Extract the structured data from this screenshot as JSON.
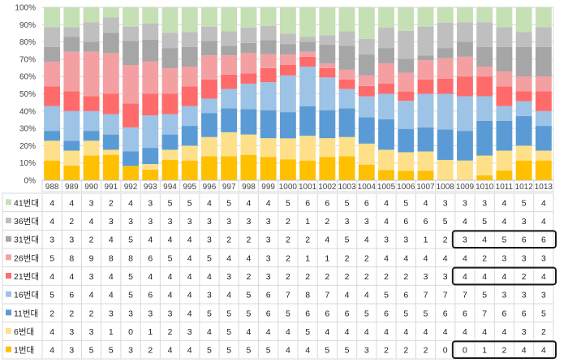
{
  "chart_data": {
    "type": "bar",
    "stacked": "percent",
    "grid": true,
    "ylim": [
      0,
      100
    ],
    "y_ticks": [
      "0%",
      "10%",
      "20%",
      "30%",
      "40%",
      "50%",
      "60%",
      "70%",
      "80%",
      "90%",
      "100%"
    ],
    "categories": [
      "988",
      "989",
      "990",
      "991",
      "992",
      "993",
      "994",
      "995",
      "996",
      "997",
      "998",
      "999",
      "1000",
      "1001",
      "1002",
      "1003",
      "1004",
      "1005",
      "1006",
      "1007",
      "1008",
      "1009",
      "1010",
      "1011",
      "1012",
      "1013"
    ],
    "series": [
      {
        "name": "1번대",
        "color": "#FFC000",
        "values": [
          4,
          3,
          5,
          5,
          3,
          2,
          4,
          4,
          5,
          5,
          5,
          5,
          4,
          4,
          5,
          5,
          3,
          2,
          2,
          2,
          0,
          0,
          1,
          2,
          4,
          4
        ]
      },
      {
        "name": "6번대",
        "color": "#FFE08A",
        "values": [
          4,
          3,
          3,
          1,
          0,
          1,
          2,
          3,
          4,
          5,
          4,
          4,
          4,
          5,
          4,
          4,
          4,
          4,
          4,
          4,
          4,
          4,
          4,
          4,
          3,
          2
        ]
      },
      {
        "name": "11번대",
        "color": "#5B9BD5",
        "values": [
          2,
          2,
          2,
          3,
          3,
          3,
          3,
          4,
          5,
          5,
          5,
          6,
          5,
          6,
          6,
          6,
          5,
          6,
          5,
          5,
          6,
          6,
          7,
          6,
          6,
          5
        ]
      },
      {
        "name": "16번대",
        "color": "#9DC3E6",
        "values": [
          5,
          6,
          4,
          4,
          5,
          6,
          4,
          4,
          3,
          4,
          5,
          6,
          7,
          8,
          7,
          4,
          4,
          5,
          6,
          7,
          7,
          7,
          5,
          3,
          3,
          3
        ]
      },
      {
        "name": "21번대",
        "color": "#FF6B6B",
        "values": [
          4,
          4,
          3,
          4,
          5,
          4,
          4,
          4,
          4,
          3,
          2,
          3,
          2,
          2,
          2,
          2,
          2,
          2,
          2,
          3,
          3,
          4,
          4,
          4,
          2,
          4
        ]
      },
      {
        "name": "26번대",
        "color": "#F4A0A3",
        "values": [
          5,
          8,
          9,
          8,
          8,
          6,
          5,
          4,
          5,
          4,
          4,
          3,
          2,
          1,
          1,
          2,
          2,
          4,
          4,
          4,
          4,
          4,
          2,
          3,
          3,
          3
        ]
      },
      {
        "name": "31번대",
        "color": "#A6A6A6",
        "values": [
          3,
          3,
          2,
          4,
          5,
          4,
          4,
          4,
          3,
          2,
          2,
          3,
          2,
          2,
          4,
          5,
          4,
          3,
          3,
          1,
          2,
          3,
          4,
          5,
          6,
          6
        ]
      },
      {
        "name": "36번대",
        "color": "#BFBFBF",
        "values": [
          4,
          2,
          4,
          3,
          3,
          3,
          3,
          3,
          3,
          3,
          3,
          3,
          2,
          1,
          2,
          3,
          3,
          4,
          6,
          6,
          5,
          4,
          5,
          4,
          3,
          4
        ]
      },
      {
        "name": "41번대",
        "color": "#C5E0B4",
        "values": [
          4,
          4,
          3,
          2,
          4,
          3,
          5,
          5,
          4,
          5,
          4,
          4,
          5,
          6,
          6,
          5,
          6,
          4,
          5,
          4,
          3,
          3,
          3,
          4,
          5,
          4
        ]
      }
    ],
    "highlights": [
      {
        "series": "31번대",
        "from": "1009",
        "to": "1013"
      },
      {
        "series": "21번대",
        "from": "1009",
        "to": "1013"
      },
      {
        "series": "1번대",
        "from": "1009",
        "to": "1013"
      }
    ]
  }
}
